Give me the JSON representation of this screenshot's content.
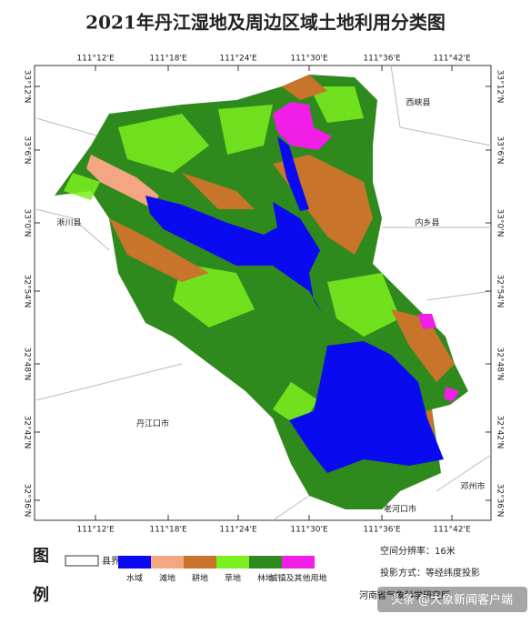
{
  "title": "2021年丹江湿地及周边区域土地利用分类图",
  "map": {
    "lon_ticks": [
      "111°12'E",
      "111°18'E",
      "111°24'E",
      "111°30'E",
      "111°36'E",
      "111°42'E"
    ],
    "lat_ticks": [
      "33°12'N",
      "33°6'N",
      "33°0'N",
      "32°54'N",
      "32°48'N",
      "32°42'N",
      "32°36'N"
    ],
    "places": [
      "西峡县",
      "内乡县",
      "淅川县",
      "丹江口市",
      "邓州市",
      "老河口市"
    ]
  },
  "legend": {
    "title_1": "图",
    "title_2": "例",
    "boundary": "县界",
    "items": [
      {
        "label": "水域",
        "color": "#0a0af0"
      },
      {
        "label": "滩地",
        "color": "#f4a582"
      },
      {
        "label": "耕地",
        "color": "#c8742a"
      },
      {
        "label": "草地",
        "color": "#7cf01e"
      },
      {
        "label": "林地",
        "color": "#2f8a1e"
      },
      {
        "label": "城镇及其他用地",
        "color": "#f01ee6"
      }
    ]
  },
  "notes": [
    "空间分辨率：16米",
    "投影方式：等经纬度投影",
    "河南省气象科学研究所"
  ],
  "watermark": "头条 @大象新闻客户端"
}
